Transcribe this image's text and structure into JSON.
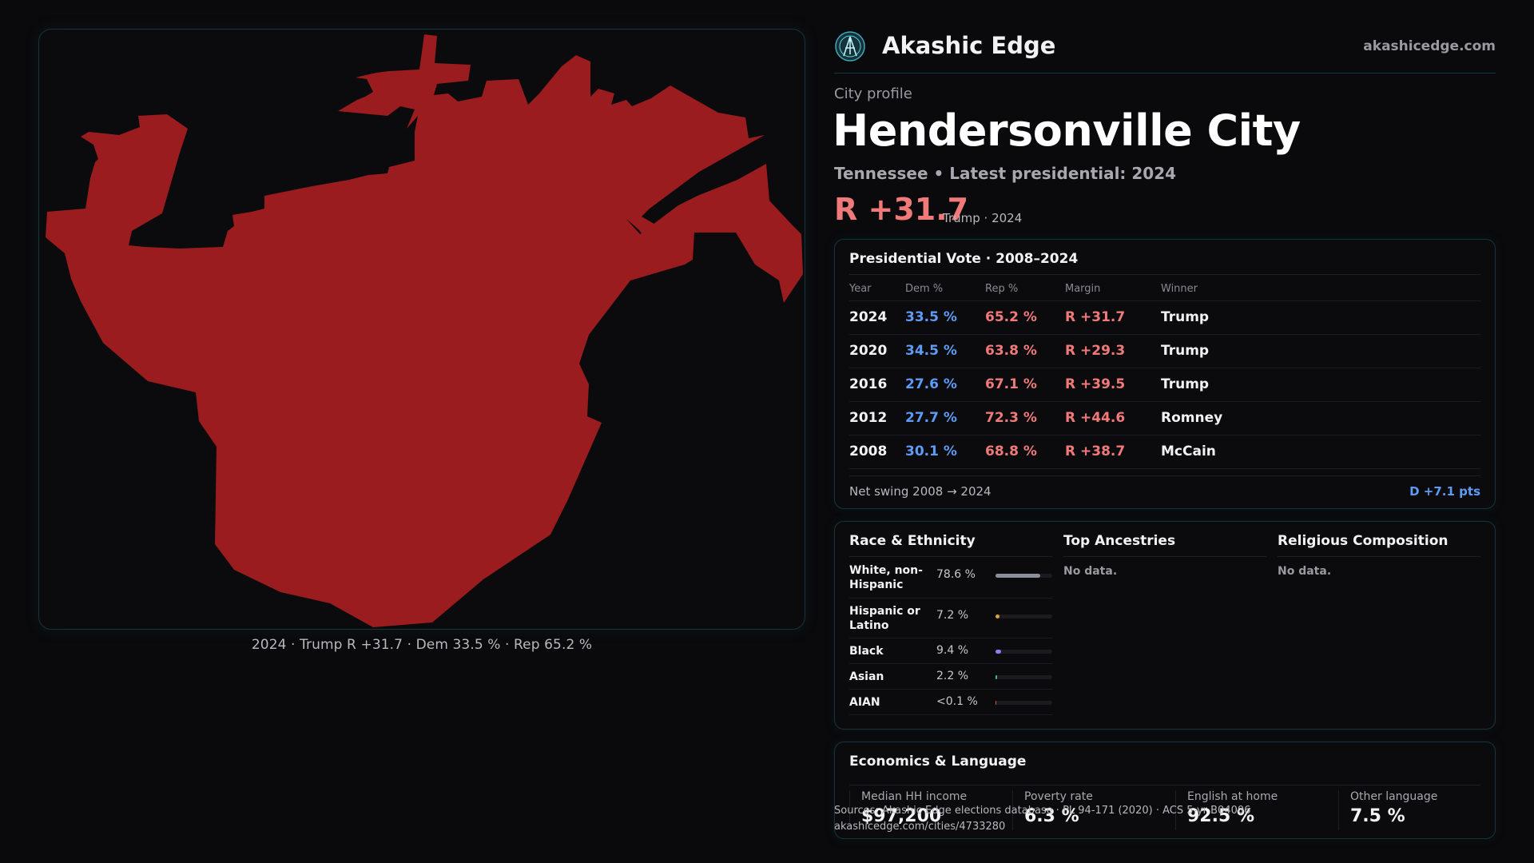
{
  "brand": {
    "name": "Akashic Edge",
    "site": "akashicedge.com"
  },
  "profile": {
    "eyebrow": "City profile",
    "city": "Hendersonville City",
    "subtitle": "Tennessee • Latest presidential: 2024",
    "margin": "R +31.7",
    "margin_note": "Trump · 2024"
  },
  "map": {
    "caption": "2024 · Trump R +31.7 · Dem 33.5 % · Rep 65.2 %",
    "fill_color": "#9b1c1f"
  },
  "vote": {
    "title": "Presidential Vote · 2008–2024",
    "headers": [
      "Year",
      "Dem %",
      "Rep %",
      "Margin",
      "Winner"
    ],
    "rows": [
      [
        "2024",
        "33.5 %",
        "65.2 %",
        "R +31.7",
        "Trump"
      ],
      [
        "2020",
        "34.5 %",
        "63.8 %",
        "R +29.3",
        "Trump"
      ],
      [
        "2016",
        "27.6 %",
        "67.1 %",
        "R +39.5",
        "Trump"
      ],
      [
        "2012",
        "27.7 %",
        "72.3 %",
        "R +44.6",
        "Romney"
      ],
      [
        "2008",
        "30.1 %",
        "68.8 %",
        "R +38.7",
        "McCain"
      ]
    ],
    "swing_label": "Net swing 2008 → 2024",
    "swing_value": "D +7.1 pts"
  },
  "demographics": {
    "race_title": "Race & Ethnicity",
    "race": [
      {
        "name": "White, non-Hispanic",
        "pct": "78.6 %",
        "share": 0.786,
        "color": "#8a9099"
      },
      {
        "name": "Hispanic or Latino",
        "pct": "7.2 %",
        "share": 0.072,
        "color": "#e0a030"
      },
      {
        "name": "Black",
        "pct": "9.4 %",
        "share": 0.094,
        "color": "#8a7ef0"
      },
      {
        "name": "Asian",
        "pct": "2.2 %",
        "share": 0.022,
        "color": "#3fb5a8"
      },
      {
        "name": "AIAN",
        "pct": "<0.1 %",
        "share": 0.0,
        "color": "#c06040"
      }
    ],
    "ancestries_title": "Top Ancestries",
    "ancestries_empty": "No data.",
    "religion_title": "Religious Composition",
    "religion_empty": "No data."
  },
  "economics": {
    "title": "Economics & Language",
    "cells": [
      {
        "label": "Median HH income",
        "value": "$97,200"
      },
      {
        "label": "Poverty rate",
        "value": "6.3 %"
      },
      {
        "label": "English at home",
        "value": "92.5 %"
      },
      {
        "label": "Other language",
        "value": "7.5 %"
      }
    ]
  },
  "footer": {
    "sources": "Sources: Akashic Edge elections database · PL 94-171 (2020) · ACS 5-yr B04006",
    "url": "akashicedge.com/cities/4733280"
  }
}
